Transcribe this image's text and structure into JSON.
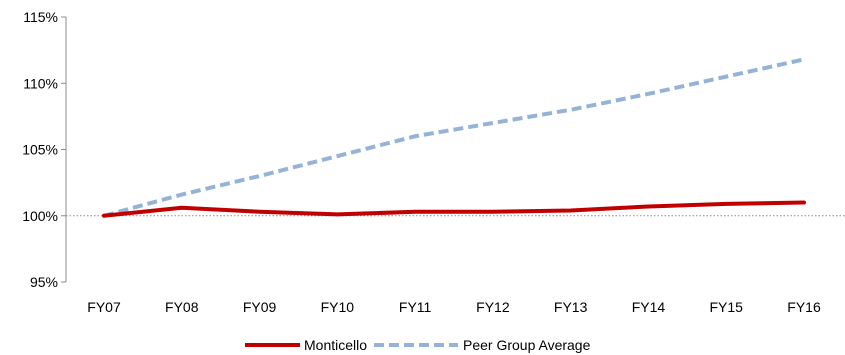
{
  "chart_data": {
    "type": "line",
    "x": [
      "FY07",
      "FY08",
      "FY09",
      "FY10",
      "FY11",
      "FY12",
      "FY13",
      "FY14",
      "FY15",
      "FY16"
    ],
    "series": [
      {
        "name": "Monticello",
        "values": [
          100.0,
          100.6,
          100.3,
          100.1,
          100.3,
          100.3,
          100.4,
          100.7,
          100.9,
          101.0
        ],
        "color": "#C00000",
        "style": "solid"
      },
      {
        "name": "Peer Group Average",
        "values": [
          100.0,
          101.6,
          103.0,
          104.5,
          106.0,
          107.0,
          108.0,
          109.2,
          110.5,
          111.8
        ],
        "color": "#95B3D7",
        "style": "dashed"
      }
    ],
    "ylim": [
      95,
      115
    ],
    "y_ticks": [
      95,
      100,
      105,
      110,
      115
    ],
    "y_tick_labels": [
      "95%",
      "100%",
      "105%",
      "110%",
      "115%"
    ],
    "reference_line": 100,
    "grid": false,
    "legend_position": "bottom",
    "title": "",
    "xlabel": "",
    "ylabel": ""
  }
}
